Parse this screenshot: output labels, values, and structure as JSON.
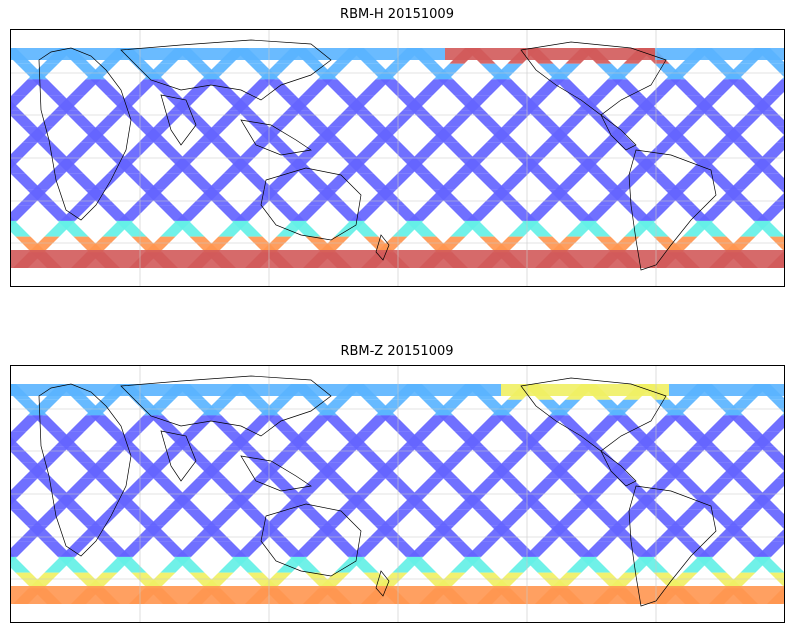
{
  "panels": [
    {
      "title": "RBM-H 20151009",
      "variable": "RBM-H",
      "date": "20151009",
      "north_band": "blue",
      "south_band": "red"
    },
    {
      "title": "RBM-Z 20151009",
      "variable": "RBM-Z",
      "date": "20151009",
      "north_band": "blue",
      "south_band": "yellow"
    }
  ],
  "colormap": {
    "low": "#6464ff",
    "mid_low": "#5ab4ff",
    "mid": "#64f0e6",
    "mid_high": "#f0f064",
    "high_mid": "#ff9650",
    "high": "#d25a5a"
  },
  "map": {
    "projection": "equirectangular",
    "gridlines": true,
    "coastlines": true
  }
}
